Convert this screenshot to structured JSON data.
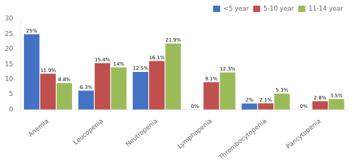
{
  "chart_data": {
    "type": "bar",
    "categories": [
      "Anemia",
      "Leucopenia",
      "Neutropenia",
      "Lymphopenia",
      "Thrombocytopenia",
      "Pancytopenia"
    ],
    "series": [
      {
        "name": "<5 year",
        "color": "#4472C4",
        "values": [
          25.0,
          6.3,
          12.5,
          0.0,
          2.0,
          0.0
        ],
        "value_labels": [
          "25%",
          "6.3%",
          "12.5%",
          "0%",
          "2%",
          "0%"
        ]
      },
      {
        "name": "5-10 year",
        "color": "#C0504D",
        "values": [
          11.9,
          15.4,
          16.1,
          9.1,
          2.1,
          2.8
        ],
        "value_labels": [
          "11.9%",
          "15.4%",
          "16.1%",
          "9.1%",
          "2.1%",
          "2.8%"
        ]
      },
      {
        "name": "11-14 year",
        "color": "#9BBB59",
        "values": [
          8.8,
          14.0,
          21.9,
          12.3,
          5.3,
          3.5
        ],
        "value_labels": [
          "8.8%",
          "14%",
          "21.9%",
          "12.3%",
          "5.3%",
          "3.5%"
        ]
      }
    ],
    "ylim": [
      0,
      30
    ],
    "yticks": [
      0,
      5,
      10,
      15,
      20,
      25,
      30
    ],
    "grid": false,
    "legend": "upper right",
    "data_labels": true
  }
}
